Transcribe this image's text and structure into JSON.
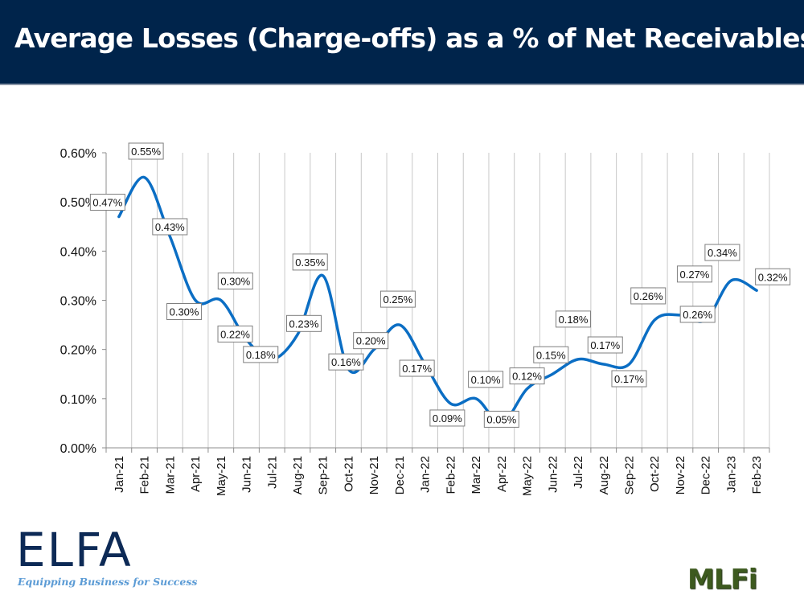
{
  "header": {
    "title": "Average Losses (Charge-offs) as a % of Net Receivables"
  },
  "colors": {
    "header_bg": "#00244b",
    "line": "#0b6ec4",
    "grid": "#c8c8c8"
  },
  "logos": {
    "elfa_word": "ELFA",
    "elfa_tagline": "Equipping Business for Success",
    "mlfi_word": "MLFi"
  },
  "chart_data": {
    "type": "line",
    "title": "Average Losses (Charge-offs) as a % of Net Receivables",
    "xlabel": "",
    "ylabel": "",
    "smooth": true,
    "grid": "vertical",
    "legend": "none",
    "ylim": [
      0,
      0.6
    ],
    "y_ticks": [
      "0.00%",
      "0.10%",
      "0.20%",
      "0.30%",
      "0.40%",
      "0.50%",
      "0.60%"
    ],
    "categories": [
      "Jan-21",
      "Feb-21",
      "Mar-21",
      "Apr-21",
      "May-21",
      "Jun-21",
      "Jul-21",
      "Aug-21",
      "Sep-21",
      "Oct-21",
      "Nov-21",
      "Dec-21",
      "Jan-22",
      "Feb-22",
      "Mar-22",
      "Apr-22",
      "May-22",
      "Jun-22",
      "Jul-22",
      "Aug-22",
      "Sep-22",
      "Oct-22",
      "Nov-22",
      "Dec-22",
      "Jan-23",
      "Feb-23"
    ],
    "series": [
      {
        "name": "Average Losses",
        "values": [
          0.47,
          0.55,
          0.43,
          0.3,
          0.3,
          0.22,
          0.18,
          0.23,
          0.35,
          0.16,
          0.2,
          0.25,
          0.17,
          0.09,
          0.1,
          0.05,
          0.12,
          0.15,
          0.18,
          0.17,
          0.17,
          0.26,
          0.27,
          0.26,
          0.34,
          0.32
        ],
        "labels": [
          "0.47%",
          "0.55%",
          "0.43%",
          "0.30%",
          "0.30%",
          "0.22%",
          "0.18%",
          "0.23%",
          "0.35%",
          "0.16%",
          "0.20%",
          "0.25%",
          "0.17%",
          "0.09%",
          "0.10%",
          "0.05%",
          "0.12%",
          "0.15%",
          "0.18%",
          "0.17%",
          "0.17%",
          "0.26%",
          "0.27%",
          "0.26%",
          "0.34%",
          "0.32%"
        ]
      }
    ]
  }
}
